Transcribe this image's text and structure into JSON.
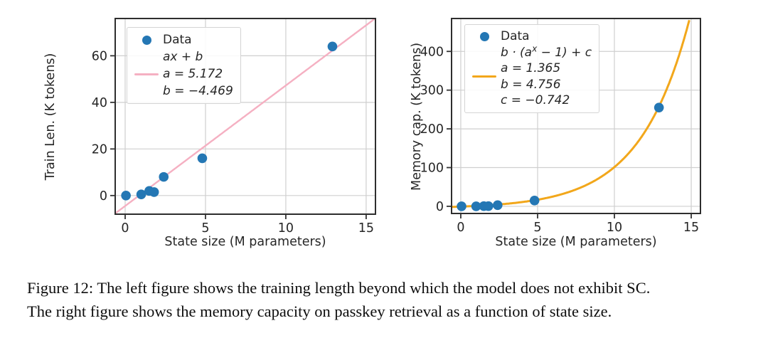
{
  "figure": {
    "caption_line1": "Figure 12: The left figure shows the training length beyond which the model does not exhibit SC.",
    "caption_line2": "The right figure shows the memory capacity on passkey retrieval as a function of state size."
  },
  "colors": {
    "point": "#2477b4",
    "fit_left": "#f5b0c2",
    "fit_right": "#f2a71b",
    "grid": "#cfcfcf",
    "spine": "#2e2e2e",
    "tick": "#333333"
  },
  "chart_data": [
    {
      "type": "scatter",
      "xlabel": "State size (M parameters)",
      "ylabel": "Train Len. (K tokens)",
      "xlim": [
        -0.62,
        15.58
      ],
      "ylim": [
        -8,
        76
      ],
      "xticks": [
        0,
        5,
        10,
        15
      ],
      "yticks": [
        0,
        20,
        40,
        60
      ],
      "grid": true,
      "legend_position": "upper-left",
      "points": [
        [
          0.05,
          0
        ],
        [
          1.0,
          0.5
        ],
        [
          1.5,
          2
        ],
        [
          1.8,
          1.5
        ],
        [
          2.4,
          8
        ],
        [
          4.8,
          16
        ],
        [
          12.9,
          64
        ]
      ],
      "fit": {
        "type": "linear",
        "a": 5.172,
        "b": -4.469
      },
      "legend": {
        "data_label": "Data",
        "fit_lines": [
          "ax + b",
          "a = 5.172",
          "b = −4.469"
        ]
      }
    },
    {
      "type": "scatter",
      "xlabel": "State size (M parameters)",
      "ylabel": "Memory cap. (K tokens)",
      "xlim": [
        -0.6,
        15.6
      ],
      "ylim": [
        -18.5,
        485
      ],
      "xticks": [
        0,
        5,
        10,
        15
      ],
      "yticks": [
        0,
        100,
        200,
        300,
        400
      ],
      "grid": true,
      "legend_position": "upper-left",
      "points": [
        [
          0.05,
          0
        ],
        [
          1.0,
          0
        ],
        [
          1.5,
          0.5
        ],
        [
          1.8,
          0.5
        ],
        [
          2.4,
          3
        ],
        [
          4.8,
          15
        ],
        [
          12.9,
          255
        ]
      ],
      "fit": {
        "type": "exp",
        "a": 1.365,
        "b": 4.756,
        "c": -0.742
      },
      "legend": {
        "data_label": "Data",
        "fit_lines": [
          "b · (aˣ − 1) + c",
          "a = 1.365",
          "b = 4.756",
          "c = −0.742"
        ]
      }
    }
  ]
}
